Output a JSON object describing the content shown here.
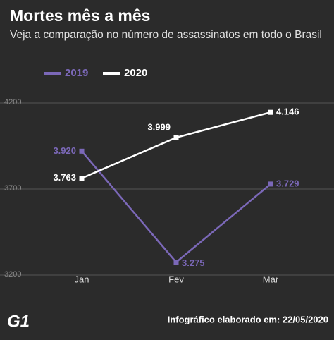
{
  "chart_data": {
    "type": "line",
    "title": "Mortes mês a mês",
    "subtitle": "Veja a comparação no número de assassinatos em todo o Brasil",
    "categories": [
      "Jan",
      "Fev",
      "Mar"
    ],
    "series": [
      {
        "name": "2019",
        "color": "#7b68b8",
        "values": [
          3920,
          3275,
          3729
        ],
        "value_labels": [
          "3.920",
          "3.275",
          "3.729"
        ]
      },
      {
        "name": "2020",
        "color": "#ffffff",
        "values": [
          3763,
          3999,
          4146
        ],
        "value_labels": [
          "3.763",
          "3.999",
          "4.146"
        ]
      }
    ],
    "ylim": [
      3200,
      4200
    ],
    "yticks": [
      3200,
      3700,
      4200
    ],
    "grid": true,
    "footer": {
      "logo": "G1",
      "note": "Infográfico elaborado em: 22/05/2020"
    }
  }
}
